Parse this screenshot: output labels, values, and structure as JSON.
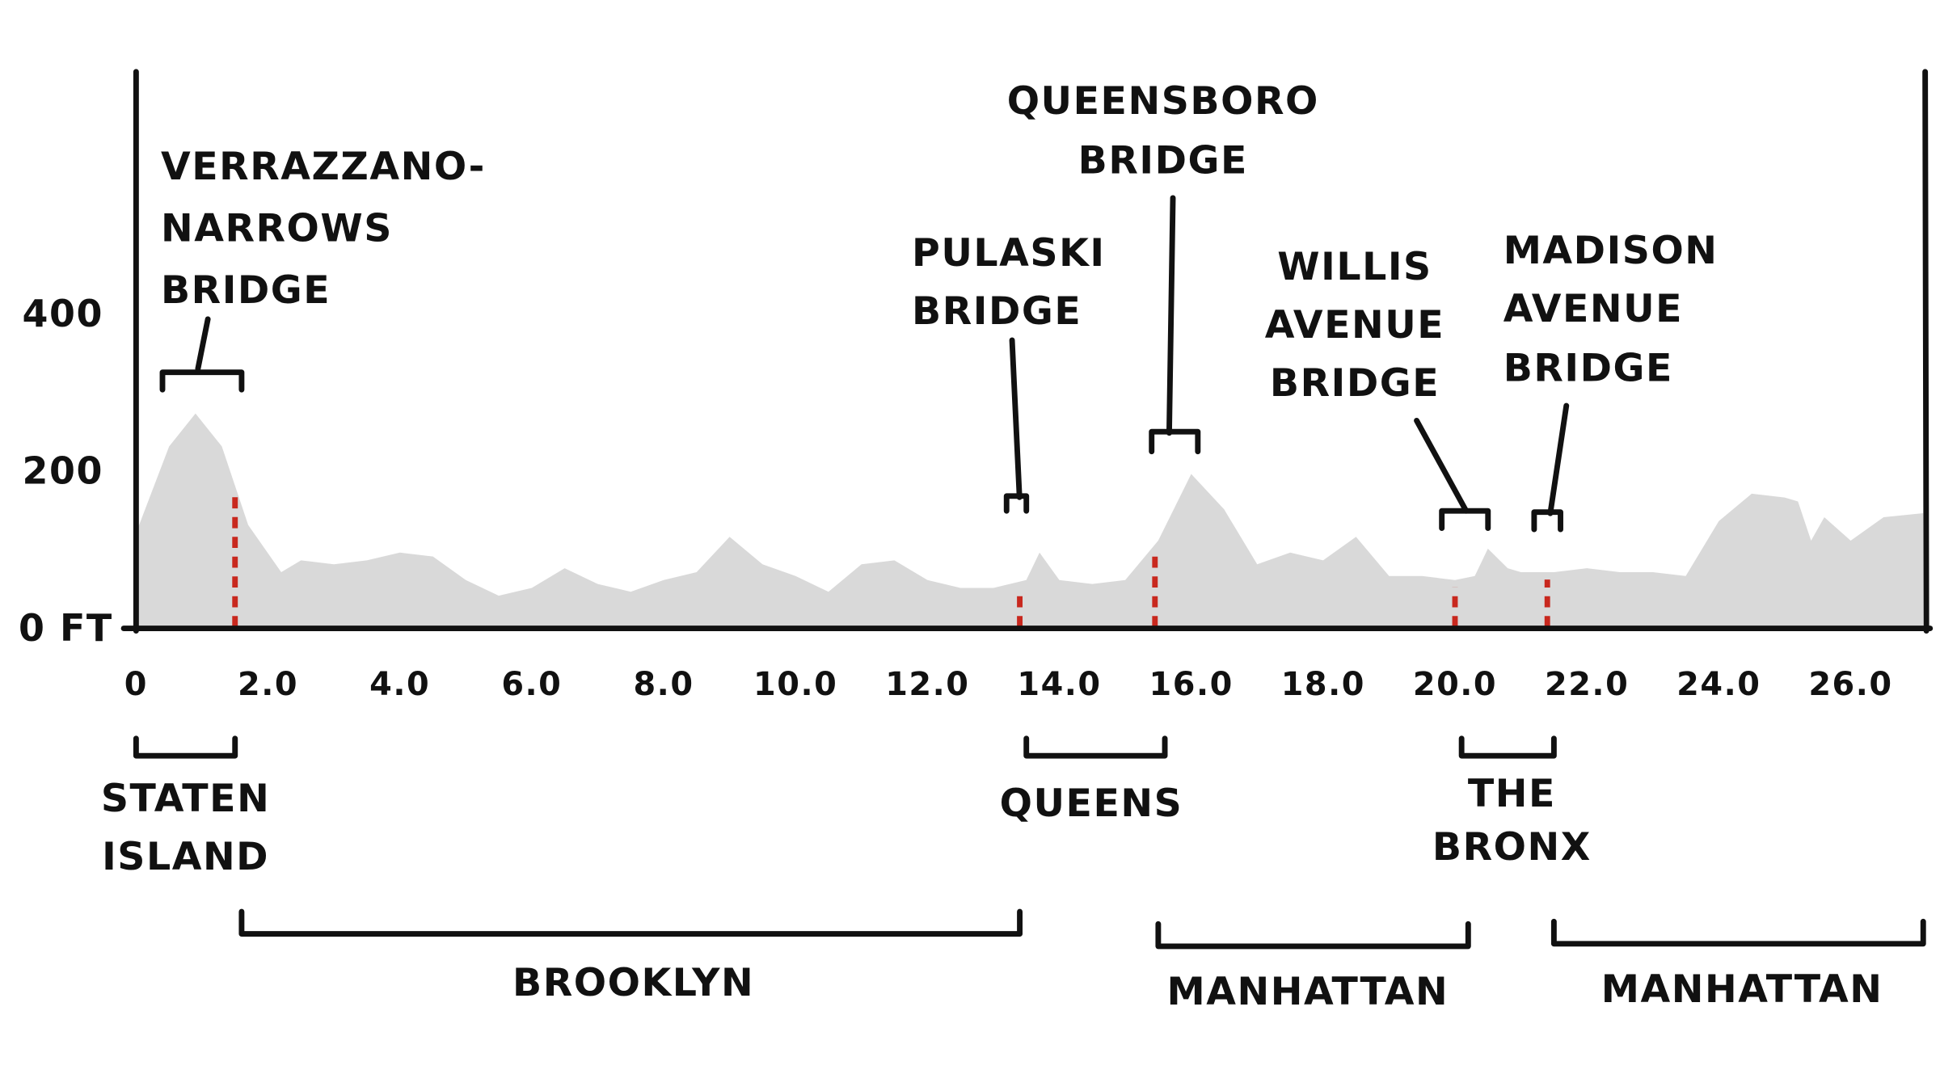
{
  "chart_data": {
    "type": "area",
    "title": "",
    "xlabel": "",
    "ylabel": "",
    "y_unit_label": "FT",
    "xlim": [
      0,
      27.1
    ],
    "ylim": [
      0,
      700
    ],
    "grid": false,
    "colors": {
      "area": "#d9d9d9",
      "bridge_marker": "#c8281e",
      "ink": "#111111"
    },
    "y_ticks": [
      {
        "value": 0,
        "label": "0 FT"
      },
      {
        "value": 200,
        "label": "200"
      },
      {
        "value": 400,
        "label": "400"
      }
    ],
    "x_ticks": [
      {
        "value": 0,
        "label": "0"
      },
      {
        "value": 2,
        "label": "2.0"
      },
      {
        "value": 4,
        "label": "4.0"
      },
      {
        "value": 6,
        "label": "6.0"
      },
      {
        "value": 8,
        "label": "8.0"
      },
      {
        "value": 10,
        "label": "10.0"
      },
      {
        "value": 12,
        "label": "12.0"
      },
      {
        "value": 14,
        "label": "14.0"
      },
      {
        "value": 16,
        "label": "16.0"
      },
      {
        "value": 18,
        "label": "18.0"
      },
      {
        "value": 20,
        "label": "20.0"
      },
      {
        "value": 22,
        "label": "22.0"
      },
      {
        "value": 24,
        "label": "24.0"
      },
      {
        "value": 26,
        "label": "26.0"
      }
    ],
    "x": [
      0,
      0.5,
      0.9,
      1.3,
      1.7,
      2.2,
      2.5,
      3,
      3.5,
      4,
      4.5,
      5,
      5.5,
      6,
      6.5,
      7,
      7.5,
      8,
      8.5,
      9,
      9.5,
      10,
      10.5,
      11,
      11.5,
      12,
      12.5,
      13,
      13.5,
      13.7,
      14,
      14.5,
      15,
      15.5,
      16,
      16.5,
      17,
      17.5,
      18,
      18.5,
      19,
      19.5,
      20,
      20.3,
      20.5,
      20.8,
      21,
      21.5,
      22,
      22.5,
      23,
      23.5,
      24,
      24.5,
      25,
      25.2,
      25.4,
      25.6,
      26,
      26.5,
      27.1
    ],
    "y": [
      120,
      230,
      272,
      230,
      130,
      70,
      85,
      80,
      85,
      95,
      90,
      60,
      40,
      50,
      75,
      55,
      45,
      60,
      70,
      115,
      80,
      65,
      45,
      80,
      85,
      60,
      50,
      50,
      60,
      95,
      60,
      55,
      60,
      110,
      195,
      150,
      80,
      95,
      85,
      115,
      65,
      65,
      60,
      65,
      100,
      75,
      70,
      70,
      75,
      70,
      70,
      65,
      135,
      170,
      165,
      160,
      110,
      140,
      110,
      140,
      145
    ],
    "bridges": [
      {
        "name": [
          "VERRAZZANO-",
          "NARROWS",
          "BRIDGE"
        ],
        "mile": 1.5,
        "span": [
          0.4,
          1.6
        ]
      },
      {
        "name": [
          "PULASKI",
          "BRIDGE"
        ],
        "mile": 13.4,
        "span": [
          13.2,
          13.5
        ]
      },
      {
        "name": [
          "QUEENSBORO",
          "BRIDGE"
        ],
        "mile": 15.45,
        "span": [
          15.4,
          16.1
        ]
      },
      {
        "name": [
          "WILLIS",
          "AVENUE",
          "BRIDGE"
        ],
        "mile": 20.0,
        "span": [
          19.8,
          20.5
        ]
      },
      {
        "name": [
          "MADISON",
          "AVENUE",
          "BRIDGE"
        ],
        "mile": 21.4,
        "span": [
          21.2,
          21.6
        ]
      }
    ],
    "boroughs": [
      {
        "name": [
          "STATEN",
          "ISLAND"
        ],
        "range": [
          0,
          1.5
        ]
      },
      {
        "name": [
          "BROOKLYN"
        ],
        "range": [
          1.6,
          13.4
        ]
      },
      {
        "name": [
          "QUEENS"
        ],
        "range": [
          13.5,
          15.6
        ]
      },
      {
        "name": [
          "MANHATTAN"
        ],
        "range": [
          15.5,
          20.2
        ]
      },
      {
        "name": [
          "THE",
          "BRONX"
        ],
        "range": [
          20.1,
          21.5
        ]
      },
      {
        "name": [
          "MANHATTAN"
        ],
        "range": [
          21.5,
          27.1
        ]
      }
    ]
  }
}
